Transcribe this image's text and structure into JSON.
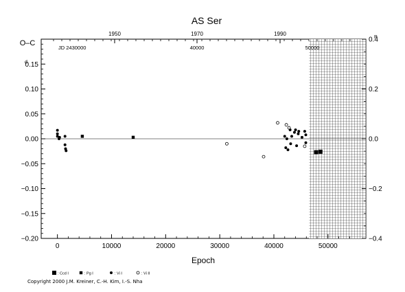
{
  "chart_data": {
    "type": "scatter",
    "title": "AS Ser",
    "xlabel": "Epoch",
    "ylabel": "O–C",
    "ylabel_right": "P",
    "xlim": [
      -3000,
      57000
    ],
    "ylim": [
      -0.2,
      0.2
    ],
    "ylim_right": [
      -0.4,
      0.4
    ],
    "x_ticks": [
      "0",
      "10000",
      "20000",
      "30000",
      "40000",
      "50000"
    ],
    "y_ticks": [
      "0.15",
      "0.10",
      "0.05",
      "0.00",
      "−0.05",
      "−0.10",
      "−0.15",
      "−0.20"
    ],
    "y_ticks_right": [
      "0.4",
      "0.2",
      "0.0",
      "−0.2",
      "−0.4"
    ],
    "top_year_ticks": [
      "1950",
      "1970",
      "1990"
    ],
    "jd_labels": [
      "JD 2430000",
      "40000",
      "50000"
    ],
    "ytick_superscript": "d",
    "hatched_region_start_epoch": 46500,
    "legend": [
      {
        "marker": "big-square",
        "label": ": Ccd I"
      },
      {
        "marker": "small-square",
        "label": ": Pg I"
      },
      {
        "marker": "filled-circle",
        "label": ": Vi I"
      },
      {
        "marker": "open-circle",
        "label": ": Vi II"
      }
    ],
    "series": [
      {
        "name": "Ccd I",
        "marker": "big-square",
        "points": [
          [
            47800,
            -0.027
          ],
          [
            48600,
            -0.026
          ]
        ]
      },
      {
        "name": "Pg I",
        "marker": "small-square",
        "points": [
          [
            4600,
            0.005
          ],
          [
            14000,
            0.003
          ]
        ]
      },
      {
        "name": "Vi I",
        "marker": "filled-circle",
        "points": [
          [
            0,
            0.017
          ],
          [
            0,
            0.01
          ],
          [
            0,
            0.005
          ],
          [
            300,
            0.0
          ],
          [
            400,
            0.003
          ],
          [
            1400,
            0.005
          ],
          [
            1400,
            -0.012
          ],
          [
            1500,
            -0.02
          ],
          [
            1600,
            -0.024
          ],
          [
            42000,
            0.005
          ],
          [
            42200,
            -0.018
          ],
          [
            42400,
            0.0
          ],
          [
            42600,
            -0.022
          ],
          [
            43000,
            0.018
          ],
          [
            43100,
            -0.01
          ],
          [
            43300,
            0.005
          ],
          [
            43800,
            0.013
          ],
          [
            44000,
            0.018
          ],
          [
            44200,
            -0.014
          ],
          [
            44500,
            0.01
          ],
          [
            44600,
            0.015
          ],
          [
            45200,
            0.003
          ],
          [
            45700,
            0.015
          ],
          [
            45900,
            -0.008
          ],
          [
            45900,
            0.008
          ]
        ]
      },
      {
        "name": "Vi II",
        "marker": "open-circle",
        "points": [
          [
            31300,
            -0.01
          ],
          [
            38100,
            -0.036
          ],
          [
            40700,
            0.032
          ],
          [
            42300,
            0.028
          ],
          [
            42800,
            0.022
          ],
          [
            45700,
            -0.015
          ]
        ]
      }
    ]
  },
  "footer": {
    "copyright": "Copyright 2000 J.M. Kreiner, C.-H. Kim, I.-S. Nha"
  }
}
